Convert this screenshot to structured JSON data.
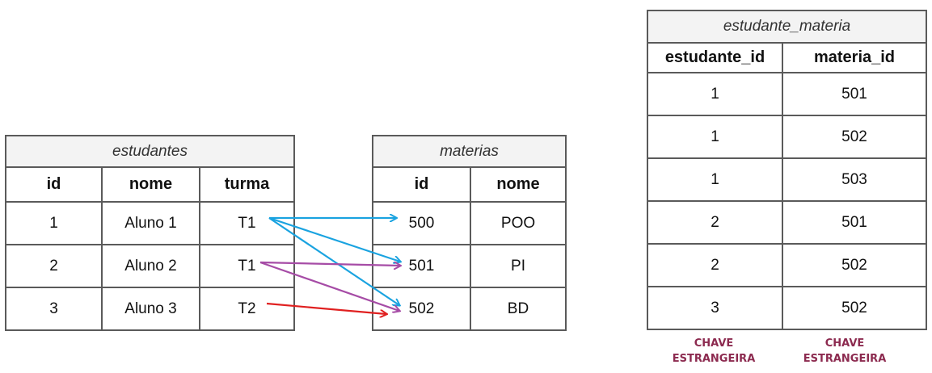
{
  "estudantes": {
    "title": "estudantes",
    "columns": [
      "id",
      "nome",
      "turma"
    ],
    "rows": [
      [
        "1",
        "Aluno 1",
        "T1"
      ],
      [
        "2",
        "Aluno 2",
        "T1"
      ],
      [
        "3",
        "Aluno 3",
        "T2"
      ]
    ]
  },
  "materias": {
    "title": "materias",
    "columns": [
      "id",
      "nome"
    ],
    "rows": [
      [
        "500",
        "POO"
      ],
      [
        "501",
        "PI"
      ],
      [
        "502",
        "BD"
      ]
    ]
  },
  "estudante_materia": {
    "title": "estudante_materia",
    "columns": [
      "estudante_id",
      "materia_id"
    ],
    "rows": [
      [
        "1",
        "501"
      ],
      [
        "1",
        "502"
      ],
      [
        "1",
        "503"
      ],
      [
        "2",
        "501"
      ],
      [
        "2",
        "502"
      ],
      [
        "3",
        "502"
      ]
    ]
  },
  "foreign_key_labels": {
    "estudante_id": "CHAVE ESTRANGEIRA",
    "materia_id": "CHAVE ESTRANGEIRA"
  },
  "colors": {
    "arrow_row1": "#1aa3e0",
    "arrow_row2": "#a64ca6",
    "arrow_row3": "#e02020",
    "foreign_key_label": "#8c2a4f"
  }
}
